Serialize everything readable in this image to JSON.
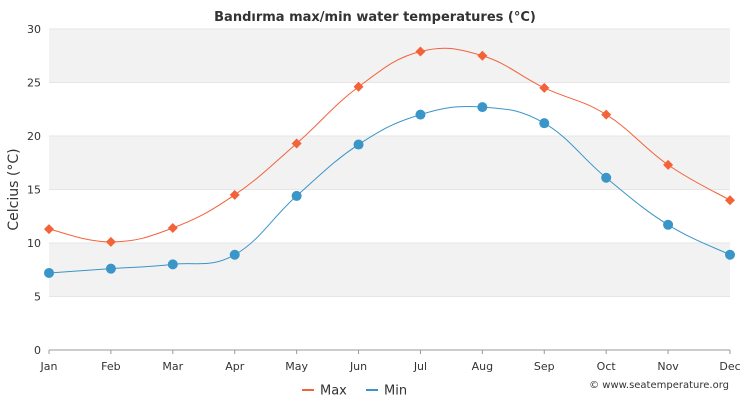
{
  "chart_data": {
    "type": "line",
    "title": "Bandırma max/min water temperatures (°C)",
    "xlabel": "",
    "ylabel": "Celcius (°C)",
    "categories": [
      "Jan",
      "Feb",
      "Mar",
      "Apr",
      "May",
      "Jun",
      "Jul",
      "Aug",
      "Sep",
      "Oct",
      "Nov",
      "Dec"
    ],
    "ylim": [
      0,
      30
    ],
    "yticks": [
      0,
      5,
      10,
      15,
      20,
      25,
      30
    ],
    "grid": true,
    "legend_position": "bottom-center",
    "series": [
      {
        "name": "Max",
        "color": "#f4623a",
        "marker": "diamond",
        "values": [
          11.3,
          10.1,
          11.4,
          14.5,
          19.3,
          24.6,
          27.9,
          27.5,
          24.5,
          22.0,
          17.3,
          14.0
        ]
      },
      {
        "name": "Min",
        "color": "#3a95c8",
        "marker": "circle",
        "values": [
          7.2,
          7.6,
          8.0,
          8.9,
          14.4,
          19.2,
          22.0,
          22.7,
          21.2,
          16.1,
          11.7,
          8.9
        ]
      }
    ],
    "credit": "© www.seatemperature.org"
  }
}
